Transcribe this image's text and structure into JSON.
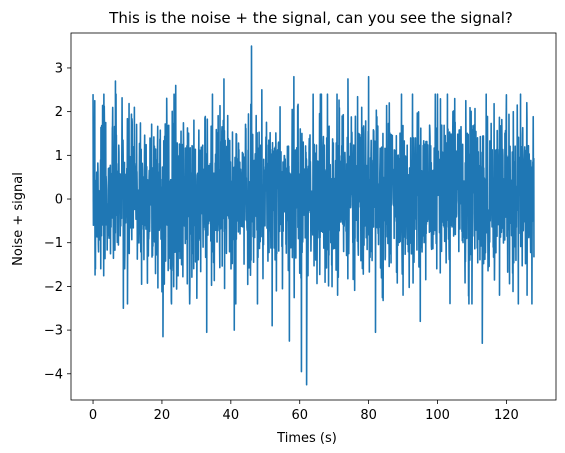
{
  "chart_data": {
    "type": "line",
    "title": "This is the noise + the signal, can you see the signal?",
    "xlabel": "Times (s)",
    "ylabel": "Noise + signal",
    "xlim": [
      -6.4,
      134.4
    ],
    "ylim": [
      -4.6,
      3.8
    ],
    "xticks": [
      0,
      20,
      40,
      60,
      80,
      100,
      120
    ],
    "yticks": [
      -4,
      -3,
      -2,
      -1,
      0,
      1,
      2,
      3
    ],
    "grid": false,
    "legend": "none",
    "color": "#1f77b4",
    "series": [
      {
        "x_range": [
          0,
          128
        ],
        "noise_band": [
          -1.1,
          1.3
        ],
        "extremes": [
          {
            "x": 0.5,
            "y": 2.25
          },
          {
            "x": 0.7,
            "y": -1.6
          },
          {
            "x": 6.5,
            "y": 2.7
          },
          {
            "x": 8.8,
            "y": -2.5
          },
          {
            "x": 10.0,
            "y": -2.4
          },
          {
            "x": 12.0,
            "y": 2.1
          },
          {
            "x": 14.1,
            "y": -1.95
          },
          {
            "x": 20.3,
            "y": -3.15
          },
          {
            "x": 24.0,
            "y": 2.6
          },
          {
            "x": 28.0,
            "y": -2.0
          },
          {
            "x": 33.0,
            "y": -3.05
          },
          {
            "x": 38.0,
            "y": 2.75
          },
          {
            "x": 41.0,
            "y": -3.0
          },
          {
            "x": 46.0,
            "y": 3.5
          },
          {
            "x": 49.0,
            "y": 2.5
          },
          {
            "x": 52.0,
            "y": -2.9
          },
          {
            "x": 57.0,
            "y": -3.25
          },
          {
            "x": 58.3,
            "y": 2.8
          },
          {
            "x": 60.5,
            "y": -3.95
          },
          {
            "x": 62.0,
            "y": -4.25
          },
          {
            "x": 66.0,
            "y": 2.4
          },
          {
            "x": 71.0,
            "y": -2.2
          },
          {
            "x": 74.0,
            "y": 2.75
          },
          {
            "x": 78.0,
            "y": 2.1
          },
          {
            "x": 80.0,
            "y": 2.8
          },
          {
            "x": 82.0,
            "y": -3.05
          },
          {
            "x": 86.0,
            "y": 2.2
          },
          {
            "x": 90.0,
            "y": -2.2
          },
          {
            "x": 95.0,
            "y": -2.8
          },
          {
            "x": 100.0,
            "y": 2.4
          },
          {
            "x": 105.0,
            "y": 2.3
          },
          {
            "x": 110.0,
            "y": -2.4
          },
          {
            "x": 113.0,
            "y": -3.3
          },
          {
            "x": 118.0,
            "y": -2.2
          },
          {
            "x": 122.0,
            "y": 2.0
          },
          {
            "x": 126.0,
            "y": -2.2
          }
        ]
      }
    ]
  }
}
